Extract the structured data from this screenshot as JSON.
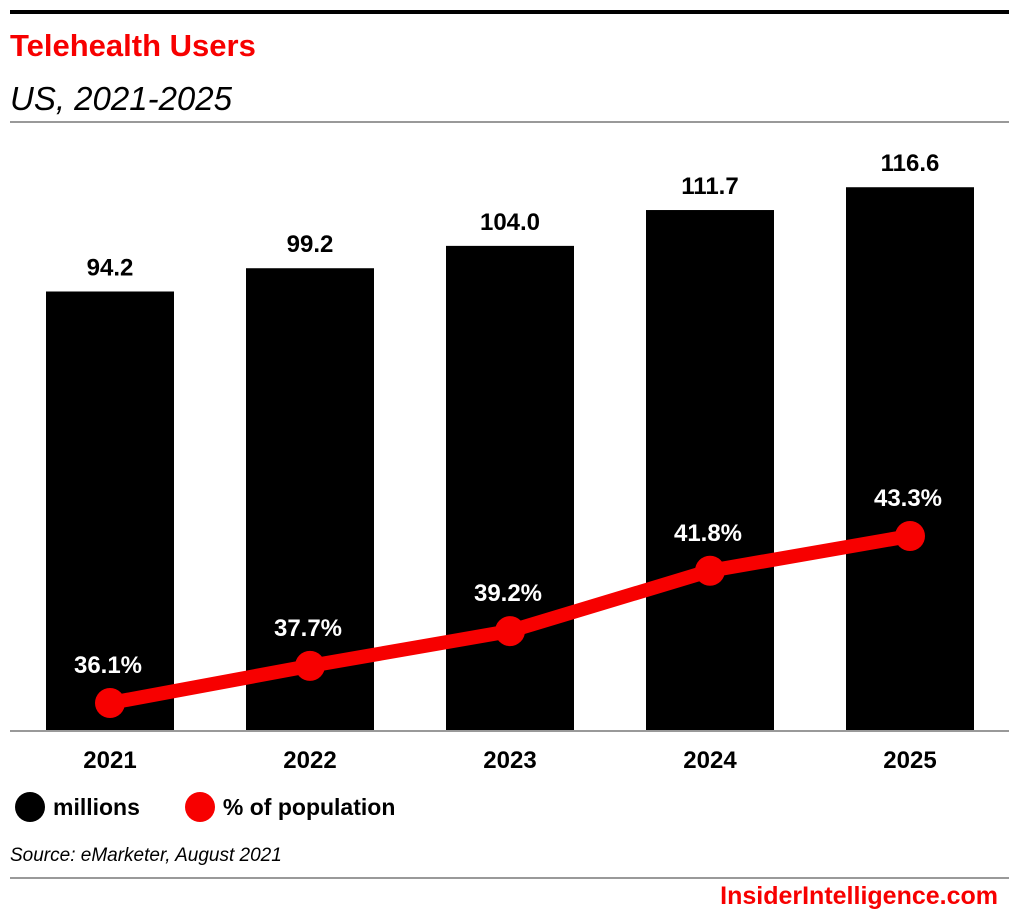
{
  "title": "Telehealth Users",
  "subtitle": "US, 2021-2025",
  "source": "Source: eMarketer, August 2021",
  "logo": "InsiderIntelligence.com",
  "colors": {
    "bar": "#000000",
    "line": "#f70000",
    "title": "#f70000"
  },
  "chart_data": {
    "type": "bar+line",
    "categories": [
      "2021",
      "2022",
      "2023",
      "2024",
      "2025"
    ],
    "series": [
      {
        "name": "millions",
        "type": "bar",
        "values": [
          94.2,
          99.2,
          104.0,
          111.7,
          116.6
        ],
        "labels": [
          "94.2",
          "99.2",
          "104.0",
          "111.7",
          "116.6"
        ]
      },
      {
        "name": "% of population",
        "type": "line",
        "values": [
          36.1,
          37.7,
          39.2,
          41.8,
          43.3
        ],
        "labels": [
          "36.1%",
          "37.7%",
          "39.2%",
          "41.8%",
          "43.3%"
        ]
      }
    ],
    "legend": "bottom-left",
    "grid": false
  }
}
